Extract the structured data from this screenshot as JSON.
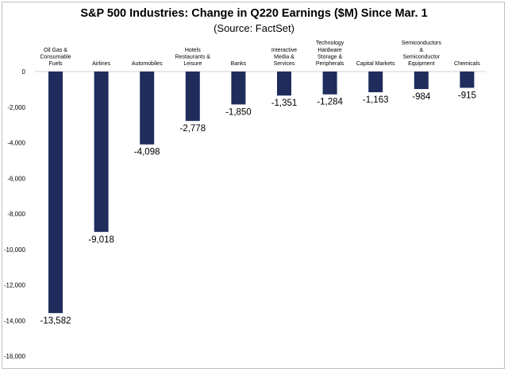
{
  "chart_data": {
    "type": "bar",
    "title": "S&P 500 Industries: Change in Q220 Earnings ($M) Since Mar. 1",
    "subtitle": "(Source: FactSet)",
    "categories": [
      "Oil Gas & Consumable Fuels",
      "Airlines",
      "Automobiles",
      "Hotels Restaurants & Leisure",
      "Banks",
      "Interactive Media & Services",
      "Technology Hardware Storage & Peripherals",
      "Capital Markets",
      "Semiconductors & Semiconductor Equipment",
      "Chemicals"
    ],
    "category_label_lines": [
      [
        "Oil Gas &",
        "Consumable",
        "Fuels"
      ],
      [
        "Airlines"
      ],
      [
        "Automobiles"
      ],
      [
        "Hotels",
        "Restaurants &",
        "Leisure"
      ],
      [
        "Banks"
      ],
      [
        "Interactive",
        "Media &",
        "Services"
      ],
      [
        "Technology",
        "Hardware",
        "Storage &",
        "Peripherals"
      ],
      [
        "Capital Markets"
      ],
      [
        "Semiconductors",
        "&",
        "Semiconductor",
        "Equipment"
      ],
      [
        "Chemicals"
      ]
    ],
    "values": [
      -13582,
      -9018,
      -4098,
      -2778,
      -1850,
      -1351,
      -1284,
      -1163,
      -984,
      -915
    ],
    "data_labels": [
      "-13,582",
      "-9,018",
      "-4,098",
      "-2,778",
      "-1,850",
      "-1,351",
      "-1,284",
      "-1,163",
      "-984",
      "-915"
    ],
    "yticks": [
      0,
      -2000,
      -4000,
      -6000,
      -8000,
      -10000,
      -12000,
      -14000,
      -16000
    ],
    "ytick_labels": [
      "0",
      "-2,000",
      "-4,000",
      "-6,000",
      "-8,000",
      "-10,000",
      "-12,000",
      "-14,000",
      "-16,000"
    ],
    "ylim": [
      -16000,
      0
    ],
    "xlabel": "",
    "ylabel": "",
    "bar_color": "#1f2c5c",
    "grid": false,
    "legend": "none"
  }
}
